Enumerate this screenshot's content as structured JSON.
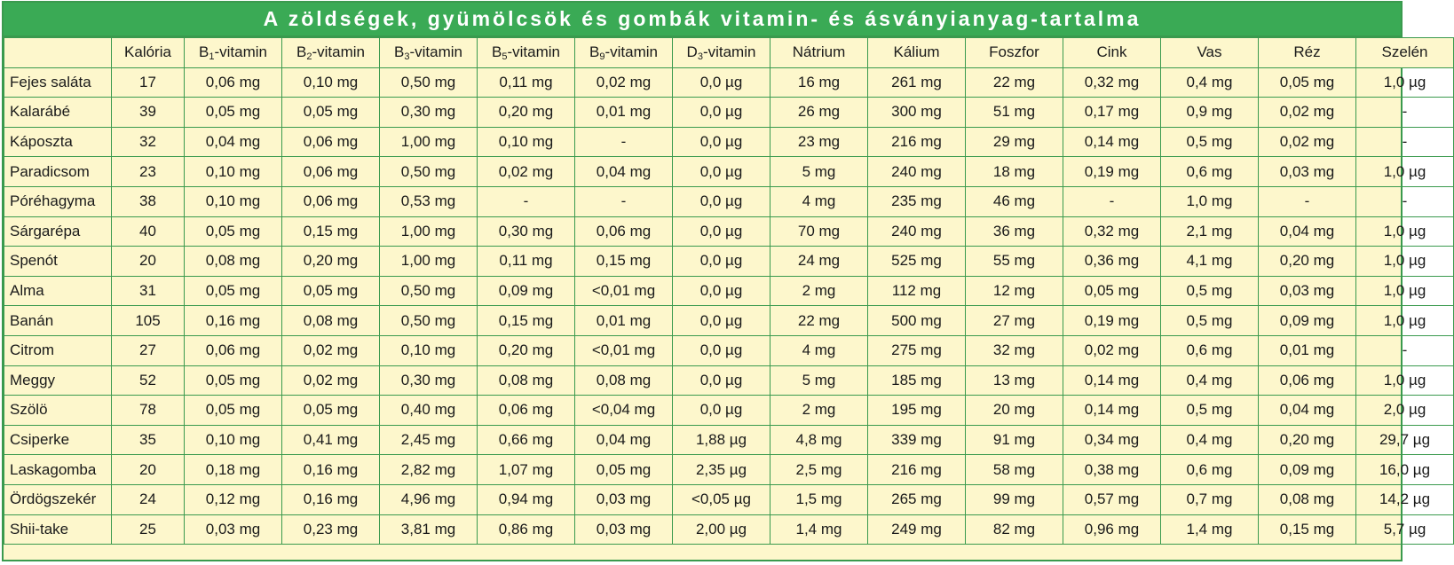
{
  "title": "A zöldségek, gyümölcsök és gombák vitamin- és ásványianyag-tartalma",
  "colors": {
    "title_bg": "#3aaa55",
    "table_bg": "#fdf7cc",
    "border": "#3a9a4e"
  },
  "header": {
    "corner": "",
    "kaloria": "Kalória",
    "vitamins": [
      {
        "base": "B",
        "sub": "1",
        "suffix": "-vitamin"
      },
      {
        "base": "B",
        "sub": "2",
        "suffix": "-vitamin"
      },
      {
        "base": "B",
        "sub": "3",
        "suffix": "-vitamin"
      },
      {
        "base": "B",
        "sub": "5",
        "suffix": "-vitamin"
      },
      {
        "base": "B",
        "sub": "9",
        "suffix": "-vitamin"
      },
      {
        "base": "D",
        "sub": "3",
        "suffix": "-vitamin"
      }
    ],
    "minerals": [
      "Nátrium",
      "Kálium",
      "Foszfor",
      "Cink",
      "Vas",
      "Réz",
      "Szelén"
    ]
  },
  "rows": [
    {
      "name": "Fejes saláta",
      "cells": [
        "17",
        "0,06 mg",
        "0,10 mg",
        "0,50 mg",
        "0,11 mg",
        "0,02 mg",
        "0,0 µg",
        "16 mg",
        "261 mg",
        "22 mg",
        "0,32 mg",
        "0,4 mg",
        "0,05 mg",
        "1,0 µg"
      ]
    },
    {
      "name": "Kalarábé",
      "cells": [
        "39",
        "0,05 mg",
        "0,05 mg",
        "0,30 mg",
        "0,20 mg",
        "0,01 mg",
        "0,0 µg",
        "26 mg",
        "300 mg",
        "51 mg",
        "0,17 mg",
        "0,9 mg",
        "0,02 mg",
        "-"
      ]
    },
    {
      "name": "Káposzta",
      "cells": [
        "32",
        "0,04 mg",
        "0,06 mg",
        "1,00 mg",
        "0,10 mg",
        "-",
        "0,0 µg",
        "23 mg",
        "216 mg",
        "29 mg",
        "0,14 mg",
        "0,5 mg",
        "0,02 mg",
        "-"
      ]
    },
    {
      "name": "Paradicsom",
      "cells": [
        "23",
        "0,10 mg",
        "0,06 mg",
        "0,50 mg",
        "0,02 mg",
        "0,04 mg",
        "0,0 µg",
        "5 mg",
        "240 mg",
        "18 mg",
        "0,19 mg",
        "0,6 mg",
        "0,03 mg",
        "1,0 µg"
      ]
    },
    {
      "name": "Póréhagyma",
      "cells": [
        "38",
        "0,10 mg",
        "0,06 mg",
        "0,53 mg",
        "-",
        "-",
        "0,0 µg",
        "4 mg",
        "235 mg",
        "46 mg",
        "-",
        "1,0 mg",
        "-",
        "-"
      ]
    },
    {
      "name": "Sárgarépa",
      "cells": [
        "40",
        "0,05 mg",
        "0,15 mg",
        "1,00 mg",
        "0,30 mg",
        "0,06 mg",
        "0,0 µg",
        "70 mg",
        "240 mg",
        "36 mg",
        "0,32 mg",
        "2,1 mg",
        "0,04 mg",
        "1,0 µg"
      ]
    },
    {
      "name": "Spenót",
      "cells": [
        "20",
        "0,08 mg",
        "0,20 mg",
        "1,00 mg",
        "0,11 mg",
        "0,15 mg",
        "0,0 µg",
        "24 mg",
        "525 mg",
        "55 mg",
        "0,36 mg",
        "4,1 mg",
        "0,20 mg",
        "1,0 µg"
      ]
    },
    {
      "name": "Alma",
      "cells": [
        "31",
        "0,05 mg",
        "0,05 mg",
        "0,50 mg",
        "0,09 mg",
        "<0,01 mg",
        "0,0 µg",
        "2 mg",
        "112 mg",
        "12 mg",
        "0,05 mg",
        "0,5 mg",
        "0,03 mg",
        "1,0 µg"
      ]
    },
    {
      "name": "Banán",
      "cells": [
        "105",
        "0,16 mg",
        "0,08 mg",
        "0,50 mg",
        "0,15 mg",
        "0,01 mg",
        "0,0 µg",
        "22 mg",
        "500 mg",
        "27 mg",
        "0,19 mg",
        "0,5 mg",
        "0,09 mg",
        "1,0 µg"
      ]
    },
    {
      "name": "Citrom",
      "cells": [
        "27",
        "0,06 mg",
        "0,02 mg",
        "0,10 mg",
        "0,20 mg",
        "<0,01 mg",
        "0,0 µg",
        "4 mg",
        "275 mg",
        "32 mg",
        "0,02 mg",
        "0,6 mg",
        "0,01 mg",
        "-"
      ]
    },
    {
      "name": "Meggy",
      "cells": [
        "52",
        "0,05 mg",
        "0,02 mg",
        "0,30 mg",
        "0,08 mg",
        "0,08 mg",
        "0,0 µg",
        "5 mg",
        "185 mg",
        "13 mg",
        "0,14 mg",
        "0,4 mg",
        "0,06 mg",
        "1,0 µg"
      ]
    },
    {
      "name": "Szölö",
      "cells": [
        "78",
        "0,05 mg",
        "0,05 mg",
        "0,40 mg",
        "0,06 mg",
        "<0,04 mg",
        "0,0 µg",
        "2 mg",
        "195 mg",
        "20 mg",
        "0,14 mg",
        "0,5 mg",
        "0,04 mg",
        "2,0 µg"
      ]
    },
    {
      "name": "Csiperke",
      "cells": [
        "35",
        "0,10 mg",
        "0,41 mg",
        "2,45 mg",
        "0,66 mg",
        "0,04 mg",
        "1,88 µg",
        "4,8 mg",
        "339 mg",
        "91 mg",
        "0,34 mg",
        "0,4 mg",
        "0,20 mg",
        "29,7 µg"
      ]
    },
    {
      "name": "Laskagomba",
      "cells": [
        "20",
        "0,18 mg",
        "0,16 mg",
        "2,82 mg",
        "1,07 mg",
        "0,05 mg",
        "2,35 µg",
        "2,5 mg",
        "216 mg",
        "58 mg",
        "0,38 mg",
        "0,6 mg",
        "0,09 mg",
        "16,0 µg"
      ]
    },
    {
      "name": "Ördögszekér",
      "cells": [
        "24",
        "0,12 mg",
        "0,16 mg",
        "4,96 mg",
        "0,94 mg",
        "0,03 mg",
        "<0,05 µg",
        "1,5 mg",
        "265 mg",
        "99 mg",
        "0,57 mg",
        "0,7 mg",
        "0,08 mg",
        "14,2 µg"
      ]
    },
    {
      "name": "Shii-take",
      "cells": [
        "25",
        "0,03 mg",
        "0,23 mg",
        "3,81 mg",
        "0,86 mg",
        "0,03 mg",
        "2,00 µg",
        "1,4 mg",
        "249 mg",
        "82 mg",
        "0,96 mg",
        "1,4 mg",
        "0,15 mg",
        "5,7 µg"
      ]
    }
  ]
}
